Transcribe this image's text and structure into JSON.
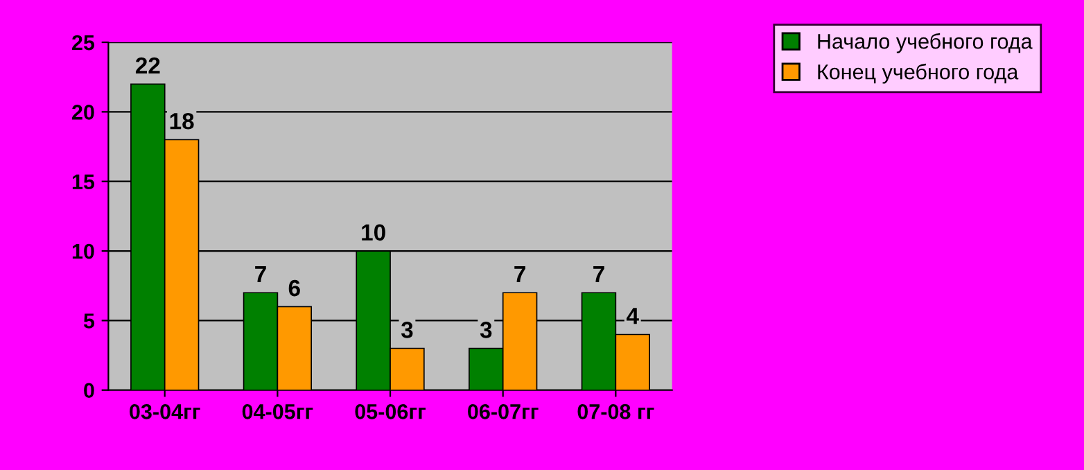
{
  "chart_data": {
    "type": "bar",
    "categories": [
      "03-04гг",
      "04-05гг",
      "05-06гг",
      "06-07гг",
      "07-08 гг"
    ],
    "series": [
      {
        "name": "Начало учебного года",
        "color": "#008000",
        "values": [
          22,
          7,
          10,
          3,
          7
        ]
      },
      {
        "name": "Конец учебного года",
        "color": "#ff9900",
        "values": [
          18,
          6,
          3,
          7,
          4
        ]
      }
    ],
    "ylim": [
      0,
      25
    ],
    "yticks": [
      0,
      5,
      10,
      15,
      20,
      25
    ],
    "grid": "y",
    "legend": "top right",
    "data_labels": true
  }
}
